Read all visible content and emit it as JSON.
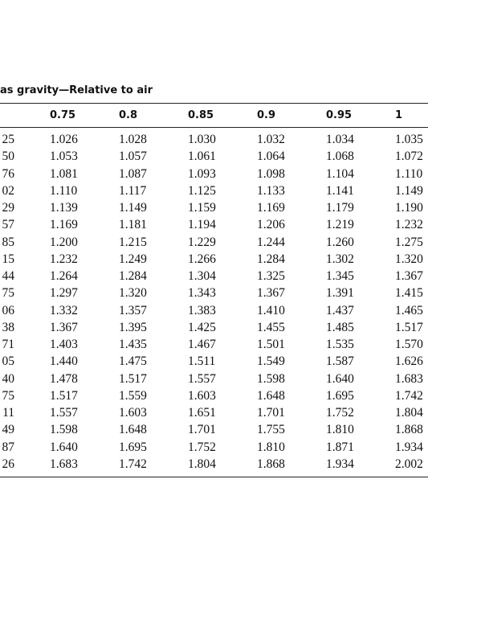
{
  "table": {
    "caption": "as gravity—Relative to air",
    "columns": [
      "0.75",
      "0.8",
      "0.85",
      "0.9",
      "0.95",
      "1"
    ],
    "rows": [
      [
        "25",
        "1.026",
        "1.028",
        "1.030",
        "1.032",
        "1.034",
        "1.035"
      ],
      [
        "50",
        "1.053",
        "1.057",
        "1.061",
        "1.064",
        "1.068",
        "1.072"
      ],
      [
        "76",
        "1.081",
        "1.087",
        "1.093",
        "1.098",
        "1.104",
        "1.110"
      ],
      [
        "02",
        "1.110",
        "1.117",
        "1.125",
        "1.133",
        "1.141",
        "1.149"
      ],
      [
        "29",
        "1.139",
        "1.149",
        "1.159",
        "1.169",
        "1.179",
        "1.190"
      ],
      [
        "57",
        "1.169",
        "1.181",
        "1.194",
        "1.206",
        "1.219",
        "1.232"
      ],
      [
        "85",
        "1.200",
        "1.215",
        "1.229",
        "1.244",
        "1.260",
        "1.275"
      ],
      [
        "15",
        "1.232",
        "1.249",
        "1.266",
        "1.284",
        "1.302",
        "1.320"
      ],
      [
        "44",
        "1.264",
        "1.284",
        "1.304",
        "1.325",
        "1.345",
        "1.367"
      ],
      [
        "75",
        "1.297",
        "1.320",
        "1.343",
        "1.367",
        "1.391",
        "1.415"
      ],
      [
        "06",
        "1.332",
        "1.357",
        "1.383",
        "1.410",
        "1.437",
        "1.465"
      ],
      [
        "38",
        "1.367",
        "1.395",
        "1.425",
        "1.455",
        "1.485",
        "1.517"
      ],
      [
        "71",
        "1.403",
        "1.435",
        "1.467",
        "1.501",
        "1.535",
        "1.570"
      ],
      [
        "05",
        "1.440",
        "1.475",
        "1.511",
        "1.549",
        "1.587",
        "1.626"
      ],
      [
        "40",
        "1.478",
        "1.517",
        "1.557",
        "1.598",
        "1.640",
        "1.683"
      ],
      [
        "75",
        "1.517",
        "1.559",
        "1.603",
        "1.648",
        "1.695",
        "1.742"
      ],
      [
        "11",
        "1.557",
        "1.603",
        "1.651",
        "1.701",
        "1.752",
        "1.804"
      ],
      [
        "49",
        "1.598",
        "1.648",
        "1.701",
        "1.755",
        "1.810",
        "1.868"
      ],
      [
        "87",
        "1.640",
        "1.695",
        "1.752",
        "1.810",
        "1.871",
        "1.934"
      ],
      [
        "26",
        "1.683",
        "1.742",
        "1.804",
        "1.868",
        "1.934",
        "2.002"
      ]
    ]
  }
}
